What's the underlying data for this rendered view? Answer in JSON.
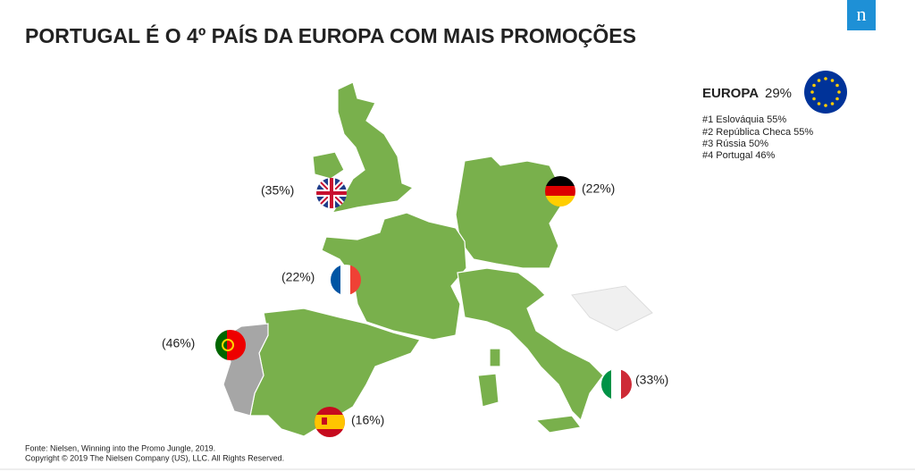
{
  "header": {
    "title": "PORTUGAL É O 4º PAÍS DA EUROPA COM MAIS PROMOÇÕES"
  },
  "summary": {
    "region": "EUROPA",
    "value": "29%",
    "ranking": [
      "#1 Eslováquia 55%",
      "#2 República Checa 55%",
      "#3 Rússia 50%",
      "#4 Portugal 46%"
    ]
  },
  "countries": [
    {
      "flag": "uk",
      "label": "(35%)"
    },
    {
      "flag": "germany",
      "label": "(22%)"
    },
    {
      "flag": "france",
      "label": "(22%)"
    },
    {
      "flag": "portugal",
      "label": "(46%)"
    },
    {
      "flag": "spain",
      "label": "(16%)"
    },
    {
      "flag": "italy",
      "label": "(33%)"
    }
  ],
  "footer": {
    "source": "Fonte: Nielsen, Winning into the Promo Jungle, 2019.",
    "copyright": "Copyright © 2019 The Nielsen Company (US), LLC. All Rights Reserved."
  }
}
